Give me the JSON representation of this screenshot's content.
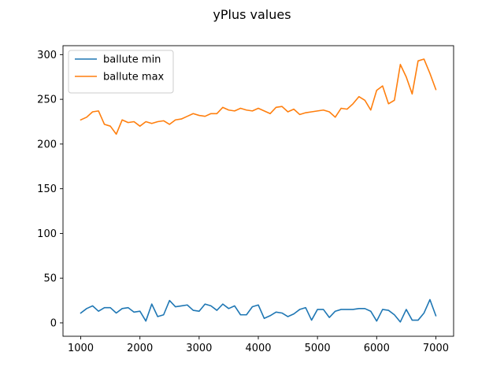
{
  "chart_data": {
    "type": "line",
    "title": "yPlus values",
    "xlabel": "",
    "ylabel": "",
    "xlim": [
      700,
      7300
    ],
    "ylim": [
      -15,
      310
    ],
    "xticks": [
      1000,
      2000,
      3000,
      4000,
      5000,
      6000,
      7000
    ],
    "yticks": [
      0,
      50,
      100,
      150,
      200,
      250,
      300
    ],
    "grid": false,
    "legend_position": "top-left",
    "x": [
      1000,
      1100,
      1200,
      1300,
      1400,
      1500,
      1600,
      1700,
      1800,
      1900,
      2000,
      2100,
      2200,
      2300,
      2400,
      2500,
      2600,
      2700,
      2800,
      2900,
      3000,
      3100,
      3200,
      3300,
      3400,
      3500,
      3600,
      3700,
      3800,
      3900,
      4000,
      4100,
      4200,
      4300,
      4400,
      4500,
      4600,
      4700,
      4800,
      4900,
      5000,
      5100,
      5200,
      5300,
      5400,
      5500,
      5600,
      5700,
      5800,
      5900,
      6000,
      6100,
      6200,
      6300,
      6400,
      6500,
      6600,
      6700,
      6800,
      6900,
      7000
    ],
    "series": [
      {
        "name": "ballute min",
        "color": "#1f77b4",
        "values": [
          11,
          16,
          19,
          13,
          17,
          17,
          11,
          16,
          17,
          12,
          13,
          2,
          21,
          7,
          9,
          25,
          18,
          19,
          20,
          14,
          13,
          21,
          19,
          14,
          21,
          16,
          19,
          9,
          9,
          18,
          20,
          5,
          8,
          12,
          11,
          7,
          10,
          15,
          17,
          3,
          15,
          15,
          6,
          13,
          15,
          15,
          15,
          16,
          16,
          13,
          2,
          15,
          14,
          9,
          1,
          15,
          3,
          3,
          11,
          26,
          8
        ]
      },
      {
        "name": "ballute max",
        "color": "#ff7f0e",
        "values": [
          227,
          230,
          236,
          237,
          222,
          220,
          211,
          227,
          224,
          225,
          220,
          225,
          223,
          225,
          226,
          222,
          227,
          228,
          231,
          234,
          232,
          231,
          234,
          234,
          241,
          238,
          237,
          240,
          238,
          237,
          240,
          237,
          234,
          241,
          242,
          236,
          239,
          233,
          235,
          236,
          237,
          238,
          236,
          230,
          240,
          239,
          245,
          253,
          249,
          238,
          260,
          265,
          245,
          249,
          289,
          275,
          256,
          293,
          295,
          279,
          261
        ]
      }
    ]
  }
}
